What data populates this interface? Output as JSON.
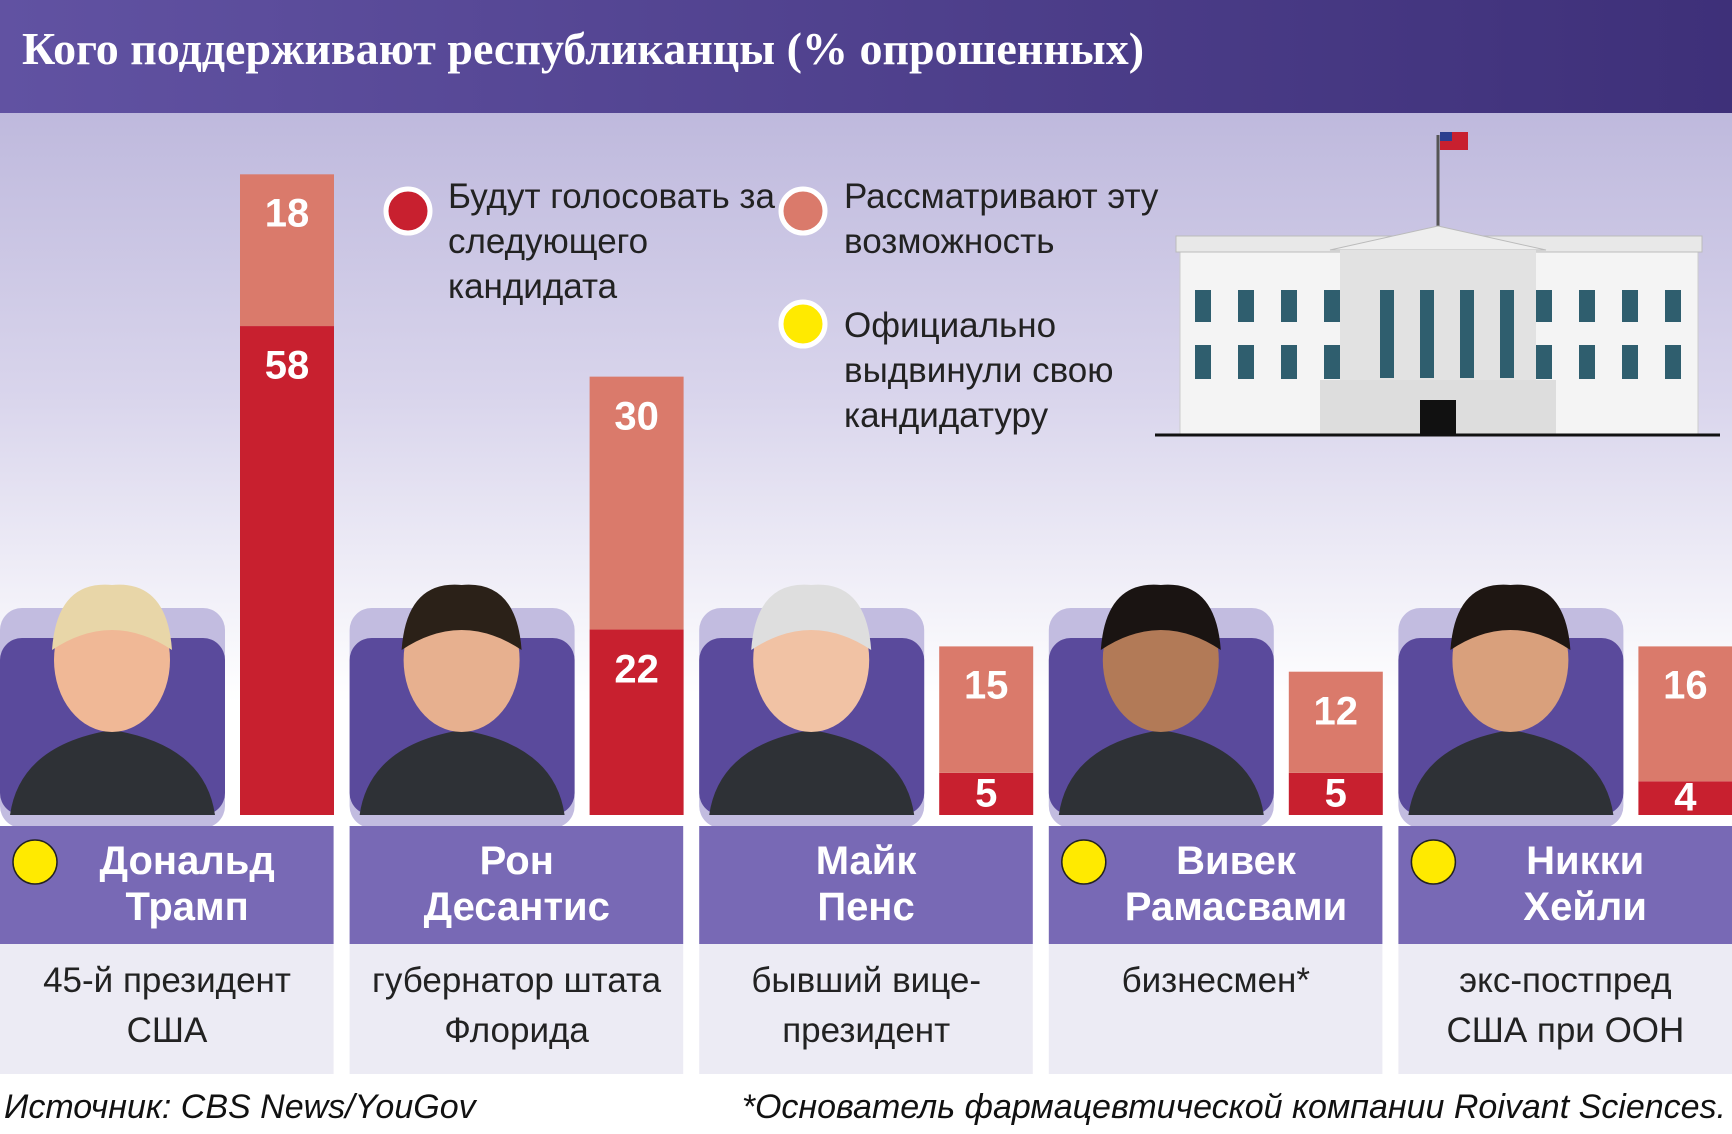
{
  "chart_data": {
    "type": "stacked-bar",
    "title": "Кого поддерживают республиканцы (% опрошенных)",
    "categories": [
      "Дональд Трамп",
      "Рон Десантис",
      "Майк Пенс",
      "Вивек Рамасвами",
      "Никки Хейли"
    ],
    "descriptions": [
      "45-й президент США",
      "губернатор штата Флорида",
      "бывший вице-президент",
      "бизнесмен*",
      "экс-постпред США при ООН"
    ],
    "series": [
      {
        "name": "Будут голосовать за следующего кандидата",
        "color": "#c8202f",
        "values": [
          58,
          22,
          5,
          5,
          4
        ]
      },
      {
        "name": "Рассматривают эту возможность",
        "color": "#da7a6b",
        "values": [
          18,
          30,
          15,
          12,
          16
        ]
      }
    ],
    "marker": {
      "name": "Официально выдвинули свою кандидатуру",
      "color": "#ffea00",
      "flags": [
        true,
        false,
        false,
        true,
        true
      ]
    },
    "source": "Источник: CBS News/YouGov",
    "footnote": "*Основатель фармацевтической компании Roivant Sciences."
  }
}
